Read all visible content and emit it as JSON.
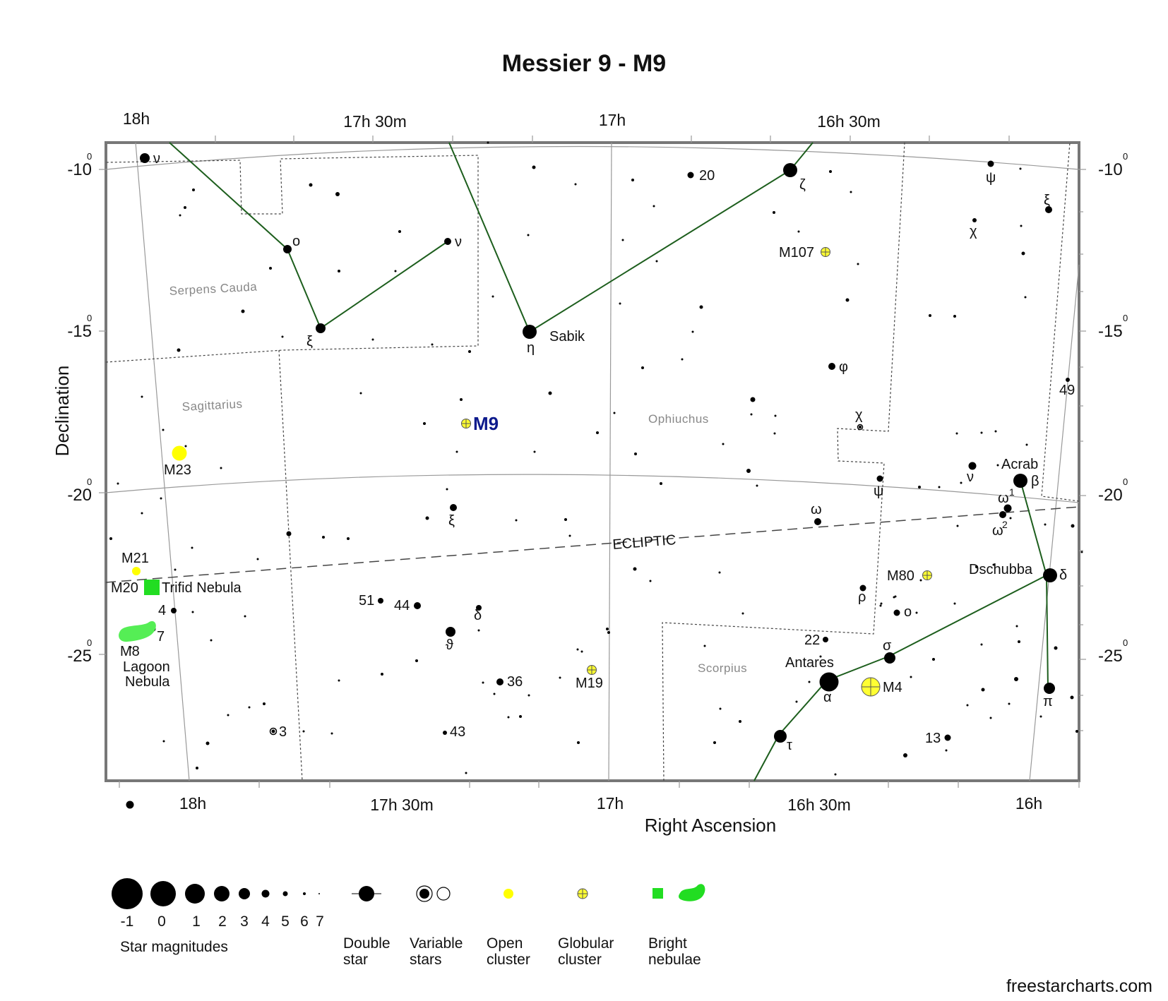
{
  "title": "Messier 9 - M9",
  "axes": {
    "xlabel": "Right Ascension",
    "ylabel": "Declination",
    "ra_ticks_top": [
      "18h",
      "17h 30m",
      "17h",
      "16h 30m"
    ],
    "ra_ticks_bottom": [
      "18h",
      "17h 30m",
      "17h",
      "16h 30m",
      "16h"
    ],
    "dec_ticks": [
      {
        "value": "-10",
        "sup": "0"
      },
      {
        "value": "-15",
        "sup": "0"
      },
      {
        "value": "-20",
        "sup": "0"
      },
      {
        "value": "-25",
        "sup": "0"
      }
    ]
  },
  "constellations": [
    "Serpens Cauda",
    "Sagittarius",
    "Ophiuchus",
    "Scorpius"
  ],
  "ecliptic_label": "ECLIPTIC",
  "target": {
    "label": "M9",
    "type": "globular cluster",
    "color": "#0d1a8c"
  },
  "star_labels": [
    "ν",
    "ο",
    "ν",
    "ξ",
    "η",
    "Sabik",
    "ζ",
    "20",
    "M107",
    "ψ",
    "χ",
    "ξ",
    "φ",
    "χ",
    "49",
    "ν",
    "Acrab",
    "β",
    "ω",
    "ω",
    "1",
    "2",
    "ψ",
    "ω",
    "ξ",
    "Dschubba",
    "δ",
    "M80",
    "ρ",
    "ο",
    "σ",
    "22",
    "Antares",
    "α",
    "M4",
    "π",
    "τ",
    "13",
    "δ",
    "ϑ",
    "51",
    "44",
    "36",
    "M19",
    "43",
    "3"
  ],
  "objects": [
    "M23",
    "M21",
    "M20",
    "Trifid Nebula",
    "M8",
    "Lagoon",
    "Nebula",
    "4",
    "7"
  ],
  "legend": {
    "magnitudes": [
      "-1",
      "0",
      "1",
      "2",
      "3",
      "4",
      "5",
      "6",
      "7"
    ],
    "magnitudes_title": "Star magnitudes",
    "items": [
      {
        "line1": "Double",
        "line2": "star"
      },
      {
        "line1": "Variable",
        "line2": "stars"
      },
      {
        "line1": "Open",
        "line2": "cluster"
      },
      {
        "line1": "Globular",
        "line2": "cluster"
      },
      {
        "line1": "Bright",
        "line2": "nebulae"
      }
    ]
  },
  "colors": {
    "constellation_line": "#1d5e1d",
    "open_cluster": "#ffff00",
    "globular_cluster": "#ffff33",
    "nebula": "#44ee44",
    "frame": "#777777"
  },
  "credit": "freestarcharts.com"
}
